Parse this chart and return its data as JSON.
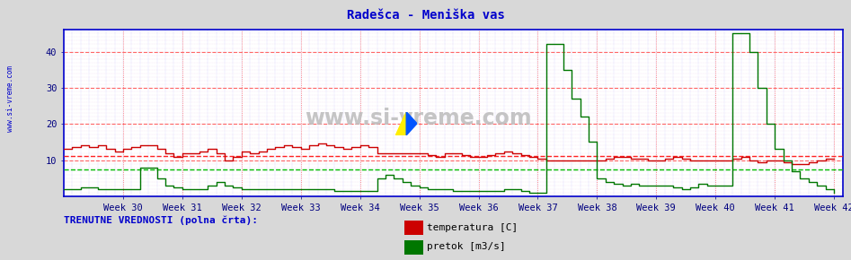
{
  "title": "Radešca - Meniška vas",
  "title_color": "#0000cc",
  "bg_color": "#d8d8d8",
  "plot_bg_color": "#ffffff",
  "week_labels": [
    "Week 30",
    "Week 31",
    "Week 32",
    "Week 33",
    "Week 34",
    "Week 35",
    "Week 36",
    "Week 37",
    "Week 38",
    "Week 39",
    "Week 40",
    "Week 41",
    "Week 42"
  ],
  "week_ticks": [
    7,
    14,
    21,
    28,
    35,
    42,
    49,
    56,
    63,
    70,
    77,
    84,
    91
  ],
  "ylim": [
    0,
    46
  ],
  "yticks": [
    10,
    20,
    30,
    40
  ],
  "xlim": [
    0,
    92
  ],
  "temp_color": "#cc0000",
  "flow_color": "#007700",
  "temp_avg_line": 11.2,
  "flow_avg_line": 7.5,
  "temp_avg_color": "#ff2222",
  "flow_avg_color": "#00bb00",
  "legend_text1": "temperatura [C]",
  "legend_text2": "pretok [m3/s]",
  "footer_text": "TRENUTNE VREDNOSTI (polna črta):",
  "footer_color": "#0000cc",
  "sidebar_text": "www.si-vreme.com",
  "sidebar_color": "#0000cc",
  "watermark": "www.si-vreme.com",
  "temp_data": [
    13.0,
    13.5,
    14.0,
    13.5,
    14.0,
    13.0,
    12.5,
    13.0,
    13.5,
    14.0,
    14.0,
    13.0,
    12.0,
    11.0,
    12.0,
    12.0,
    12.5,
    13.0,
    12.0,
    10.0,
    11.0,
    12.5,
    12.0,
    12.5,
    13.0,
    13.5,
    14.0,
    13.5,
    13.0,
    14.0,
    14.5,
    14.0,
    13.5,
    13.0,
    13.5,
    14.0,
    13.5,
    12.0,
    12.0,
    12.0,
    12.0,
    12.0,
    12.0,
    11.5,
    11.0,
    12.0,
    12.0,
    11.5,
    11.0,
    11.0,
    11.5,
    12.0,
    12.5,
    12.0,
    11.5,
    11.0,
    10.5,
    10.0,
    10.0,
    10.0,
    10.0,
    10.0,
    10.0,
    10.0,
    10.5,
    11.0,
    11.0,
    10.5,
    10.5,
    10.0,
    10.0,
    10.5,
    11.0,
    10.5,
    10.0,
    10.0,
    10.0,
    10.0,
    10.0,
    10.5,
    11.0,
    10.0,
    9.5,
    10.0,
    10.0,
    9.5,
    9.0,
    9.0,
    9.5,
    10.0,
    10.5,
    10.5
  ],
  "flow_data": [
    2.0,
    2.0,
    2.5,
    2.5,
    2.0,
    2.0,
    2.0,
    2.0,
    2.0,
    8.0,
    8.0,
    5.0,
    3.0,
    2.5,
    2.0,
    2.0,
    2.0,
    3.0,
    4.0,
    3.0,
    2.5,
    2.0,
    2.0,
    2.0,
    2.0,
    2.0,
    2.0,
    2.0,
    2.0,
    2.0,
    2.0,
    2.0,
    1.5,
    1.5,
    1.5,
    1.5,
    1.5,
    5.0,
    6.0,
    5.0,
    4.0,
    3.0,
    2.5,
    2.0,
    2.0,
    2.0,
    1.5,
    1.5,
    1.5,
    1.5,
    1.5,
    1.5,
    2.0,
    2.0,
    1.5,
    1.0,
    1.0,
    42.0,
    42.0,
    35.0,
    27.0,
    22.0,
    15.0,
    5.0,
    4.0,
    3.5,
    3.0,
    3.5,
    3.0,
    3.0,
    3.0,
    3.0,
    2.5,
    2.0,
    2.5,
    3.5,
    3.0,
    3.0,
    3.0,
    45.0,
    45.0,
    40.0,
    30.0,
    20.0,
    13.0,
    10.0,
    7.0,
    5.0,
    4.0,
    3.0,
    2.0,
    1.0
  ]
}
